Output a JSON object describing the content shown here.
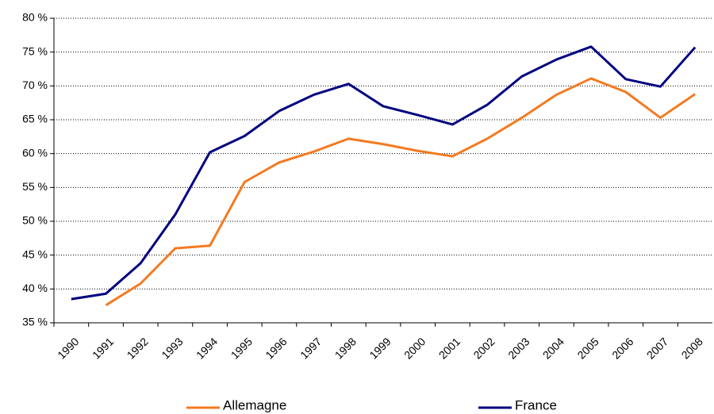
{
  "chart_data": {
    "type": "line",
    "categories": [
      "1990",
      "1991",
      "1992",
      "1993",
      "1994",
      "1995",
      "1996",
      "1997",
      "1998",
      "1999",
      "2000",
      "2001",
      "2002",
      "2003",
      "2004",
      "2005",
      "2006",
      "2007",
      "2008"
    ],
    "series": [
      {
        "name": "Allemagne",
        "color": "#f47a20",
        "values": [
          null,
          37.6,
          40.8,
          46.0,
          46.4,
          55.8,
          58.7,
          60.3,
          62.2,
          61.4,
          60.4,
          59.6,
          62.2,
          65.3,
          68.7,
          71.1,
          69.1,
          65.3,
          68.8
        ]
      },
      {
        "name": "France",
        "color": "#000080",
        "values": [
          38.5,
          39.3,
          43.8,
          51.0,
          60.2,
          62.6,
          66.3,
          68.7,
          70.3,
          67.0,
          65.7,
          64.3,
          67.2,
          71.4,
          73.9,
          75.8,
          71.0,
          69.9,
          75.7
        ]
      }
    ],
    "ylim": [
      35,
      80
    ],
    "yticks": [
      {
        "value": 35,
        "label": "35 %"
      },
      {
        "value": 40,
        "label": "40 %"
      },
      {
        "value": 45,
        "label": "45 %"
      },
      {
        "value": 50,
        "label": "50 %"
      },
      {
        "value": 55,
        "label": "55 %"
      },
      {
        "value": 60,
        "label": "60 %"
      },
      {
        "value": 65,
        "label": "65 %"
      },
      {
        "value": 70,
        "label": "70 %"
      },
      {
        "value": 75,
        "label": "75 %"
      },
      {
        "value": 80,
        "label": "80 %"
      }
    ],
    "grid": true,
    "legend": "bottom"
  }
}
